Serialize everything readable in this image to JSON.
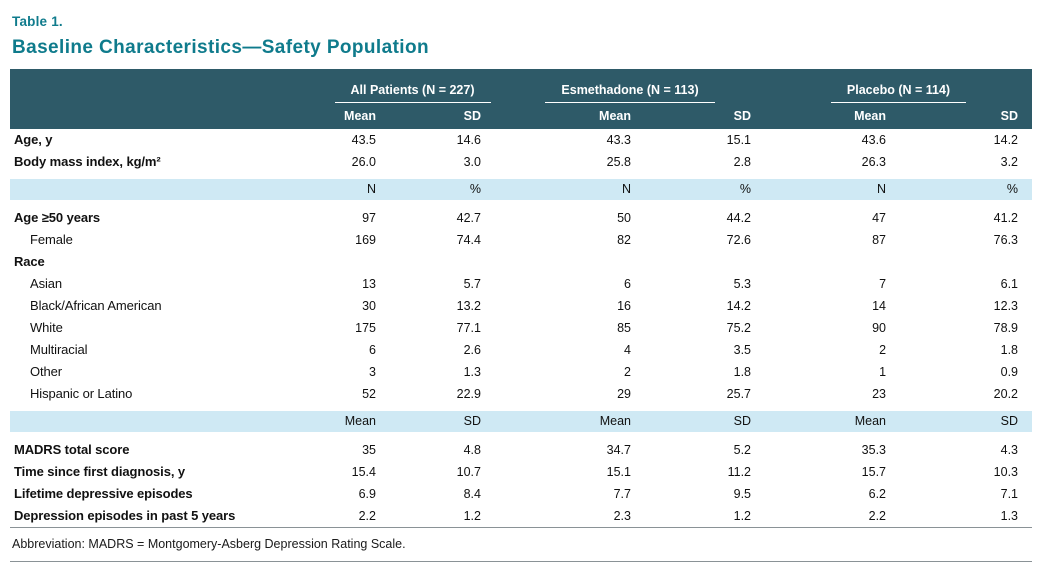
{
  "colors": {
    "accent": "#0f7b8c",
    "header_bg": "#2e5a68",
    "band_bg": "#cfe9f4",
    "rule": "#8a9296"
  },
  "doc": {
    "table_label": "Table 1.",
    "table_title": "Baseline Characteristics—Safety Population",
    "footnote": "Abbreviation: MADRS = Montgomery-Asberg Depression Rating Scale."
  },
  "table": {
    "groups": [
      "All Patients (N = 227)",
      "Esmethadone (N = 113)",
      "Placebo (N = 114)"
    ],
    "stat_headers": [
      "Mean",
      "SD",
      "Mean",
      "SD",
      "Mean",
      "SD"
    ],
    "rows": [
      {
        "type": "data",
        "label": "Age, y",
        "bold": true,
        "indent": false,
        "values": [
          "43.5",
          "14.6",
          "43.3",
          "15.1",
          "43.6",
          "14.2"
        ]
      },
      {
        "type": "data",
        "label": "Body mass index, kg/m²",
        "bold": true,
        "indent": false,
        "values": [
          "26.0",
          "3.0",
          "25.8",
          "2.8",
          "26.3",
          "3.2"
        ]
      },
      {
        "type": "band",
        "values": [
          "N",
          "%",
          "N",
          "%",
          "N",
          "%"
        ]
      },
      {
        "type": "data",
        "label": "Age ≥50 years",
        "bold": true,
        "indent": false,
        "values": [
          "97",
          "42.7",
          "50",
          "44.2",
          "47",
          "41.2"
        ]
      },
      {
        "type": "data",
        "label": "Female",
        "bold": false,
        "indent": true,
        "values": [
          "169",
          "74.4",
          "82",
          "72.6",
          "87",
          "76.3"
        ]
      },
      {
        "type": "data",
        "label": "Race",
        "bold": true,
        "indent": false,
        "values": [
          "",
          "",
          "",
          "",
          "",
          ""
        ]
      },
      {
        "type": "data",
        "label": "Asian",
        "bold": false,
        "indent": true,
        "values": [
          "13",
          "5.7",
          "6",
          "5.3",
          "7",
          "6.1"
        ]
      },
      {
        "type": "data",
        "label": "Black/African American",
        "bold": false,
        "indent": true,
        "values": [
          "30",
          "13.2",
          "16",
          "14.2",
          "14",
          "12.3"
        ]
      },
      {
        "type": "data",
        "label": "White",
        "bold": false,
        "indent": true,
        "values": [
          "175",
          "77.1",
          "85",
          "75.2",
          "90",
          "78.9"
        ]
      },
      {
        "type": "data",
        "label": "Multiracial",
        "bold": false,
        "indent": true,
        "values": [
          "6",
          "2.6",
          "4",
          "3.5",
          "2",
          "1.8"
        ]
      },
      {
        "type": "data",
        "label": "Other",
        "bold": false,
        "indent": true,
        "values": [
          "3",
          "1.3",
          "2",
          "1.8",
          "1",
          "0.9"
        ]
      },
      {
        "type": "data",
        "label": "Hispanic or Latino",
        "bold": false,
        "indent": true,
        "values": [
          "52",
          "22.9",
          "29",
          "25.7",
          "23",
          "20.2"
        ]
      },
      {
        "type": "band",
        "values": [
          "Mean",
          "SD",
          "Mean",
          "SD",
          "Mean",
          "SD"
        ]
      },
      {
        "type": "data",
        "label": "MADRS total score",
        "bold": true,
        "indent": false,
        "values": [
          "35",
          "4.8",
          "34.7",
          "5.2",
          "35.3",
          "4.3"
        ]
      },
      {
        "type": "data",
        "label": "Time since first diagnosis, y",
        "bold": true,
        "indent": false,
        "values": [
          "15.4",
          "10.7",
          "15.1",
          "11.2",
          "15.7",
          "10.3"
        ]
      },
      {
        "type": "data",
        "label": "Lifetime depressive episodes",
        "bold": true,
        "indent": false,
        "values": [
          "6.9",
          "8.4",
          "7.7",
          "9.5",
          "6.2",
          "7.1"
        ]
      },
      {
        "type": "data",
        "label": "Depression episodes in past 5 years",
        "bold": true,
        "indent": false,
        "values": [
          "2.2",
          "1.2",
          "2.3",
          "1.2",
          "2.2",
          "1.3"
        ]
      }
    ]
  }
}
